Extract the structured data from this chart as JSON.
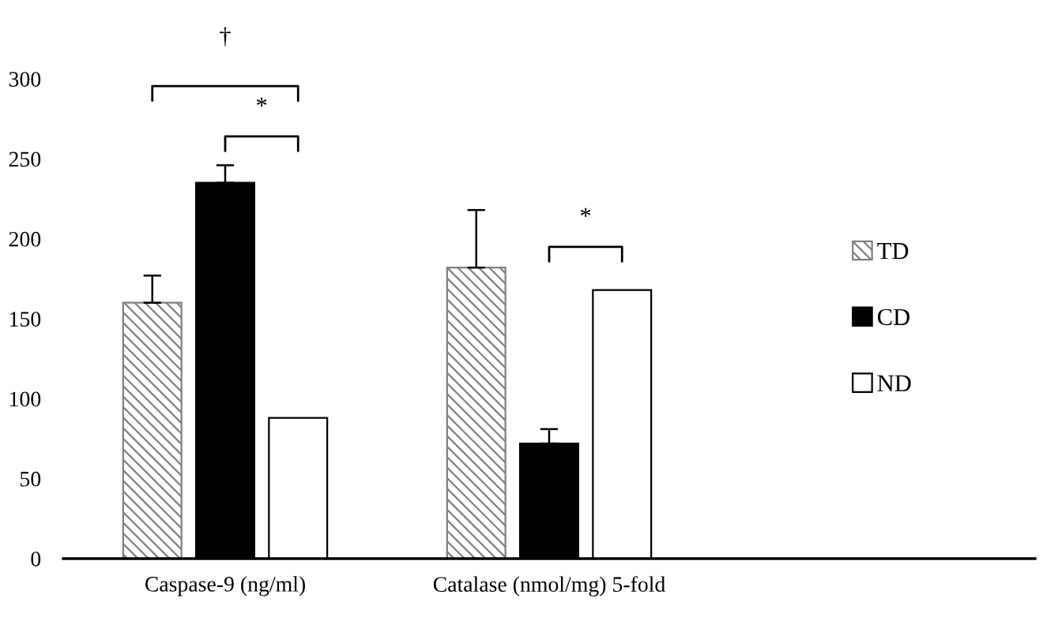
{
  "chart_data": {
    "type": "bar",
    "categories": [
      "Caspase-9 (ng/ml)",
      "Catalase (nmol/mg) 5-fold",
      null
    ],
    "series": [
      {
        "name": "TD",
        "color": "#808080",
        "values": [
          160,
          182,
          null
        ],
        "errors": [
          [
            160,
            177
          ],
          [
            182,
            218
          ],
          null
        ]
      },
      {
        "name": "CD",
        "color": "#000000",
        "values": [
          235,
          72,
          null
        ],
        "errors": [
          [
            235,
            246
          ],
          [
            72,
            81
          ],
          null
        ]
      },
      {
        "name": "ND",
        "color": "#ffffff",
        "values": [
          88,
          168,
          null
        ]
      }
    ],
    "ylim": [
      0,
      300
    ],
    "yticks": [
      0,
      50,
      100,
      150,
      200,
      250,
      300
    ],
    "annotations": [
      "†",
      "*",
      "*"
    ],
    "legend": "right",
    "grid": false
  }
}
